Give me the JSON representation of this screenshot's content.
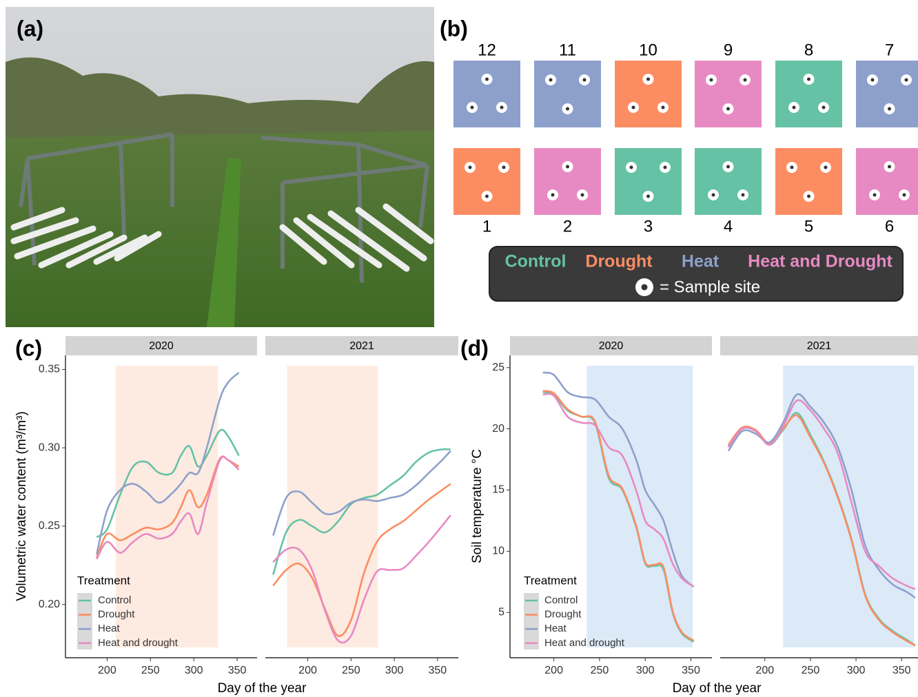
{
  "panel_labels": {
    "a": "(a)",
    "b": "(b)",
    "c": "(c)",
    "d": "(d)"
  },
  "plot_layout": {
    "rows": [
      [
        {
          "label": 12,
          "color": "#8da0cb"
        },
        {
          "label": 11,
          "color": "#8da0cb"
        },
        {
          "label": 10,
          "color": "#fc8d62"
        },
        {
          "label": 9,
          "color": "#e78ac3"
        },
        {
          "label": 8,
          "color": "#66c2a5"
        },
        {
          "label": 7,
          "color": "#8da0cb"
        }
      ],
      [
        {
          "label": 1,
          "color": "#fc8d62"
        },
        {
          "label": 2,
          "color": "#e78ac3"
        },
        {
          "label": 3,
          "color": "#66c2a5"
        },
        {
          "label": 4,
          "color": "#66c2a5"
        },
        {
          "label": 5,
          "color": "#fc8d62"
        },
        {
          "label": 6,
          "color": "#e78ac3"
        }
      ]
    ],
    "legend": {
      "items": [
        {
          "label": "Control",
          "color": "#66c2a5"
        },
        {
          "label": "Drought",
          "color": "#fc8d62"
        },
        {
          "label": "Heat",
          "color": "#8da0cb"
        },
        {
          "label": "Heat and Drought",
          "color": "#e78ac3"
        }
      ],
      "sample_site": "= Sample site"
    }
  },
  "chart_data": [
    {
      "type": "line",
      "ylabel": "Volumetric water content (m³/m³)",
      "xlabel": "Day of the year",
      "ylim": [
        0.166,
        0.359
      ],
      "yticks": [
        {
          "value": 0.2,
          "label": "0.20"
        },
        0.25,
        {
          "value": 0.3,
          "label": "0.30"
        },
        0.35
      ],
      "legend_title": "Treatment",
      "shade_color": "#fdebe1",
      "series": [
        {
          "name": "Control",
          "color": "#66c2a5"
        },
        {
          "name": "Drought",
          "color": "#fc8d62"
        },
        {
          "name": "Heat",
          "color": "#8da0cb"
        },
        {
          "name": "Heat and drought",
          "color": "#e78ac3"
        }
      ],
      "facets": [
        {
          "title": "2020",
          "xlim": [
            152,
            373
          ],
          "xticks": [
            200,
            250,
            300,
            350
          ],
          "shade": [
            210,
            328
          ],
          "x": [
            188,
            200,
            215,
            230,
            245,
            260,
            275,
            285,
            295,
            305,
            315,
            330,
            340,
            352
          ],
          "values": [
            [
              0.243,
              0.248,
              0.27,
              0.288,
              0.291,
              0.284,
              0.284,
              0.295,
              0.301,
              0.288,
              0.295,
              0.311,
              0.307,
              0.295
            ],
            [
              0.23,
              0.245,
              0.241,
              0.245,
              0.249,
              0.248,
              0.252,
              0.262,
              0.273,
              0.262,
              0.27,
              0.293,
              0.292,
              0.288
            ],
            [
              0.232,
              0.26,
              0.273,
              0.277,
              0.272,
              0.265,
              0.271,
              0.277,
              0.284,
              0.284,
              0.3,
              0.331,
              0.342,
              0.348
            ],
            [
              0.229,
              0.24,
              0.233,
              0.24,
              0.245,
              0.242,
              0.245,
              0.253,
              0.258,
              0.245,
              0.265,
              0.292,
              0.292,
              0.286
            ]
          ]
        },
        {
          "title": "2021",
          "xlim": [
            151,
            374
          ],
          "xticks": [
            200,
            250,
            300,
            350
          ],
          "shade": [
            176,
            281
          ],
          "x": [
            160,
            175,
            190,
            205,
            220,
            235,
            250,
            265,
            280,
            295,
            310,
            325,
            340,
            355,
            365
          ],
          "values": [
            [
              0.219,
              0.246,
              0.254,
              0.25,
              0.246,
              0.253,
              0.264,
              0.268,
              0.27,
              0.276,
              0.282,
              0.291,
              0.297,
              0.299,
              0.299
            ],
            [
              0.212,
              0.222,
              0.226,
              0.217,
              0.197,
              0.18,
              0.19,
              0.22,
              0.24,
              0.248,
              0.253,
              0.26,
              0.267,
              0.273,
              0.277
            ],
            [
              0.244,
              0.268,
              0.272,
              0.265,
              0.258,
              0.259,
              0.265,
              0.267,
              0.266,
              0.268,
              0.27,
              0.276,
              0.284,
              0.292,
              0.298
            ],
            [
              0.227,
              0.235,
              0.235,
              0.222,
              0.196,
              0.177,
              0.18,
              0.203,
              0.221,
              0.222,
              0.223,
              0.231,
              0.24,
              0.25,
              0.257
            ]
          ]
        }
      ]
    },
    {
      "type": "line",
      "ylabel": "Soil temperature °C",
      "xlabel": "Day of the year",
      "ylim": [
        1.3,
        26
      ],
      "yticks": [
        5,
        10,
        15,
        20,
        25
      ],
      "legend_title": "Treatment",
      "shade_color": "#dce9f7",
      "series": [
        {
          "name": "Control",
          "color": "#66c2a5"
        },
        {
          "name": "Drought",
          "color": "#fc8d62"
        },
        {
          "name": "Heat",
          "color": "#8da0cb"
        },
        {
          "name": "Heat and drought",
          "color": "#e78ac3"
        }
      ],
      "facets": [
        {
          "title": "2020",
          "xlim": [
            152,
            373
          ],
          "xticks": [
            200,
            250,
            300,
            350
          ],
          "shade": [
            236,
            352
          ],
          "x": [
            188,
            200,
            215,
            230,
            245,
            260,
            275,
            290,
            300,
            310,
            320,
            330,
            340,
            353
          ],
          "values": [
            [
              23.0,
              22.8,
              21.5,
              21.0,
              20.5,
              16.0,
              15.0,
              12.0,
              9.0,
              8.8,
              8.5,
              5.0,
              3.3,
              2.6
            ],
            [
              23.1,
              22.9,
              21.6,
              21.0,
              20.6,
              16.2,
              15.1,
              12.1,
              9.1,
              8.9,
              8.7,
              5.1,
              3.4,
              2.7
            ],
            [
              24.6,
              24.4,
              23.0,
              22.6,
              22.4,
              21.0,
              20.0,
              17.5,
              15.0,
              13.8,
              12.5,
              10.0,
              8.0,
              7.1
            ],
            [
              22.8,
              22.7,
              21.0,
              20.5,
              20.3,
              18.5,
              17.8,
              15.0,
              12.5,
              11.8,
              11.0,
              9.0,
              7.8,
              7.1
            ]
          ]
        },
        {
          "title": "2021",
          "xlim": [
            151,
            368
          ],
          "xticks": [
            200,
            250,
            300,
            350
          ],
          "shade": [
            220,
            364
          ],
          "x": [
            160,
            175,
            190,
            205,
            220,
            235,
            250,
            265,
            280,
            295,
            310,
            325,
            340,
            355,
            365
          ],
          "values": [
            [
              18.6,
              20.0,
              19.8,
              18.7,
              19.9,
              21.3,
              19.5,
              17.3,
              14.5,
              11.0,
              6.5,
              4.5,
              3.5,
              2.8,
              2.3
            ],
            [
              18.7,
              20.1,
              19.9,
              18.8,
              20.0,
              21.1,
              19.3,
              17.2,
              14.4,
              10.9,
              6.4,
              4.4,
              3.4,
              2.7,
              2.3
            ],
            [
              18.2,
              19.8,
              19.6,
              18.9,
              20.5,
              22.8,
              21.8,
              20.5,
              18.5,
              15.0,
              10.5,
              8.5,
              7.3,
              6.7,
              6.2
            ],
            [
              18.5,
              20.0,
              19.8,
              18.7,
              20.2,
              22.3,
              21.5,
              20.0,
              18.0,
              14.0,
              10.0,
              8.8,
              7.8,
              7.2,
              6.9
            ]
          ]
        }
      ]
    }
  ]
}
